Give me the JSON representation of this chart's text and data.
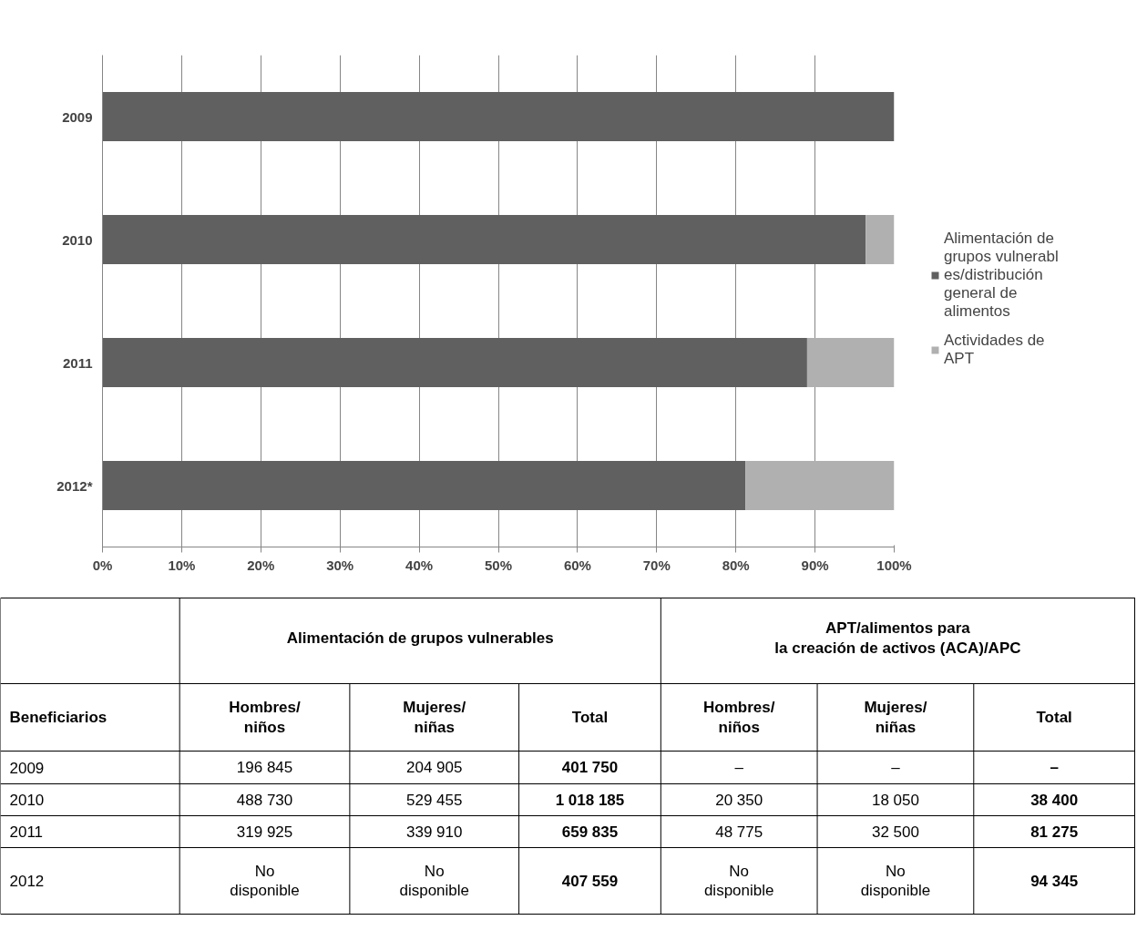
{
  "chart_data": [
    {
      "type": "bar",
      "orientation": "horizontal",
      "stacked": true,
      "categories": [
        "2009",
        "2010",
        "2011",
        "2012*"
      ],
      "series": [
        {
          "name": "Alimentación de grupos vulnerables/distribución general de alimentos",
          "color": "#606060",
          "values": [
            100,
            96.4,
            89.0,
            81.2
          ]
        },
        {
          "name": "Actividades de APT",
          "color": "#b0b0b0",
          "values": [
            0,
            3.6,
            11.0,
            18.8
          ]
        }
      ],
      "xlim": [
        0,
        100
      ],
      "xticks": [
        {
          "value": 0,
          "label": "0%"
        },
        {
          "value": 10,
          "label": "10%"
        },
        {
          "value": 20,
          "label": "20%"
        },
        {
          "value": 30,
          "label": "30%"
        },
        {
          "value": 40,
          "label": "40%"
        },
        {
          "value": 50,
          "label": "50%"
        },
        {
          "value": 60,
          "label": "60%"
        },
        {
          "value": 70,
          "label": "70%"
        },
        {
          "value": 80,
          "label": "80%"
        },
        {
          "value": 90,
          "label": "90%"
        },
        {
          "value": 100,
          "label": "100%"
        }
      ],
      "grid": "x",
      "legend": "right"
    },
    {
      "type": "other",
      "annotations": [
        "Alimentación de grupos vulnerables",
        "APT/alimentos para\nla creación de activos (ACA)/APC",
        "Beneficiarios",
        "Hombres/\nniños",
        "Mujeres/\nniñas",
        "Total",
        "Hombres/\nniños",
        "Mujeres/\nniñas",
        "Total",
        "2009",
        "196 845",
        "204 905",
        "401 750",
        "–",
        "–",
        "–",
        "2010",
        "488 730",
        "529 455",
        "1 018 185",
        "20 350",
        "18 050",
        "38 400",
        "2011",
        "319 925",
        "339 910",
        "659 835",
        "48 775",
        "32 500",
        "81 275",
        "2012",
        "No\ndisponible",
        "No\ndisponible",
        "407 559",
        "No\ndisponible",
        "No\ndisponible",
        "94 345"
      ]
    }
  ]
}
